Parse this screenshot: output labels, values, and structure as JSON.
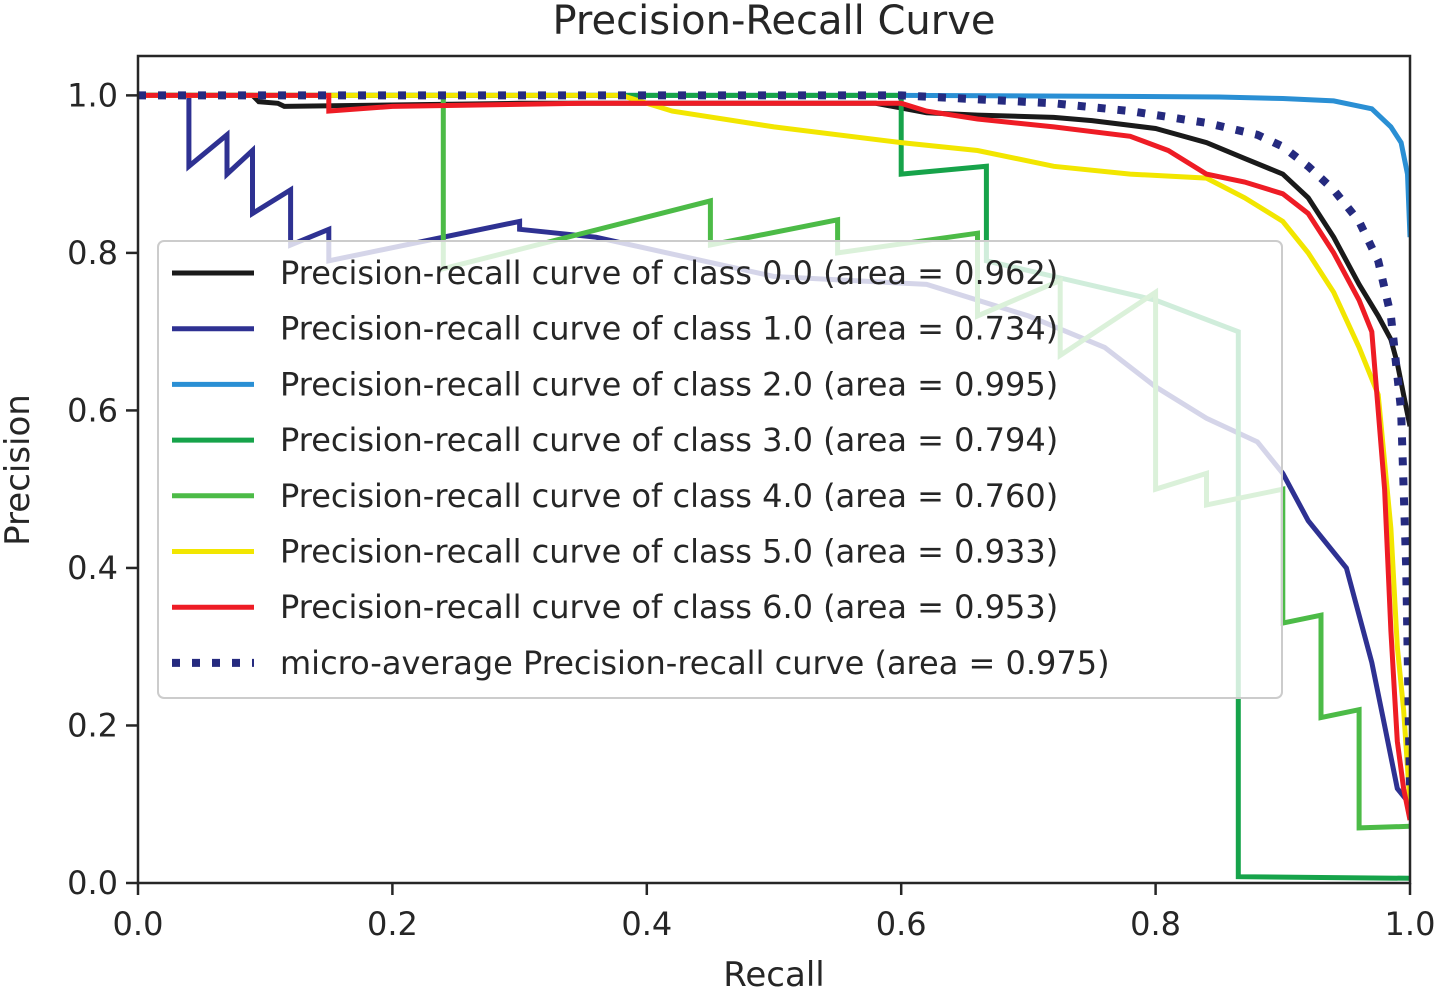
{
  "chart_data": {
    "type": "line",
    "title": "Precision-Recall Curve",
    "xlabel": "Recall",
    "ylabel": "Precision",
    "xlim": [
      0.0,
      1.0
    ],
    "ylim": [
      0.0,
      1.05
    ],
    "xticks": [
      "0.0",
      "0.2",
      "0.4",
      "0.6",
      "0.8",
      "1.0"
    ],
    "yticks": [
      "0.0",
      "0.2",
      "0.4",
      "0.6",
      "0.8",
      "1.0"
    ],
    "legend_position": "center",
    "series": [
      {
        "name": "Precision-recall curve of class 0.0 (area = 0.962)",
        "color": "#1a1a1a",
        "style": "solid",
        "points": [
          [
            0,
            1.0
          ],
          [
            0.09,
            1.0
          ],
          [
            0.095,
            0.992
          ],
          [
            0.11,
            0.99
          ],
          [
            0.115,
            0.986
          ],
          [
            0.3,
            0.99
          ],
          [
            0.58,
            0.99
          ],
          [
            0.62,
            0.978
          ],
          [
            0.66,
            0.975
          ],
          [
            0.72,
            0.972
          ],
          [
            0.75,
            0.968
          ],
          [
            0.8,
            0.958
          ],
          [
            0.84,
            0.94
          ],
          [
            0.87,
            0.92
          ],
          [
            0.9,
            0.9
          ],
          [
            0.92,
            0.87
          ],
          [
            0.94,
            0.82
          ],
          [
            0.96,
            0.76
          ],
          [
            0.975,
            0.72
          ],
          [
            0.985,
            0.69
          ],
          [
            0.99,
            0.66
          ],
          [
            0.995,
            0.62
          ],
          [
            1.0,
            0.58
          ]
        ]
      },
      {
        "name": "Precision-recall curve of class 1.0 (area = 0.734)",
        "color": "#2e3192",
        "style": "solid",
        "points": [
          [
            0,
            1.0
          ],
          [
            0.04,
            1.0
          ],
          [
            0.04,
            0.91
          ],
          [
            0.07,
            0.95
          ],
          [
            0.07,
            0.9
          ],
          [
            0.09,
            0.93
          ],
          [
            0.09,
            0.85
          ],
          [
            0.12,
            0.88
          ],
          [
            0.12,
            0.81
          ],
          [
            0.15,
            0.83
          ],
          [
            0.15,
            0.79
          ],
          [
            0.18,
            0.8
          ],
          [
            0.3,
            0.84
          ],
          [
            0.3,
            0.83
          ],
          [
            0.36,
            0.82
          ],
          [
            0.5,
            0.77
          ],
          [
            0.62,
            0.76
          ],
          [
            0.7,
            0.72
          ],
          [
            0.76,
            0.68
          ],
          [
            0.8,
            0.63
          ],
          [
            0.84,
            0.59
          ],
          [
            0.88,
            0.56
          ],
          [
            0.9,
            0.52
          ],
          [
            0.92,
            0.46
          ],
          [
            0.95,
            0.4
          ],
          [
            0.97,
            0.28
          ],
          [
            0.98,
            0.2
          ],
          [
            0.99,
            0.12
          ],
          [
            1.0,
            0.1
          ]
        ]
      },
      {
        "name": "Precision-recall curve of class 2.0 (area = 0.995)",
        "color": "#2a8fd4",
        "style": "solid",
        "points": [
          [
            0,
            1.0
          ],
          [
            0.6,
            1.0
          ],
          [
            0.75,
            0.999
          ],
          [
            0.85,
            0.998
          ],
          [
            0.9,
            0.996
          ],
          [
            0.94,
            0.993
          ],
          [
            0.97,
            0.983
          ],
          [
            0.985,
            0.96
          ],
          [
            0.993,
            0.94
          ],
          [
            0.998,
            0.9
          ],
          [
            1.0,
            0.82
          ]
        ]
      },
      {
        "name": "Precision-recall curve of class 3.0 (area = 0.794)",
        "color": "#16a34a",
        "style": "solid",
        "points": [
          [
            0,
            1.0
          ],
          [
            0.6,
            1.0
          ],
          [
            0.6,
            0.9
          ],
          [
            0.667,
            0.91
          ],
          [
            0.667,
            0.79
          ],
          [
            0.72,
            0.77
          ],
          [
            0.8,
            0.74
          ],
          [
            0.865,
            0.7
          ],
          [
            0.865,
            0.008
          ],
          [
            1.0,
            0.006
          ]
        ]
      },
      {
        "name": "Precision-recall curve of class 4.0 (area = 0.760)",
        "color": "#4cbb47",
        "style": "solid",
        "points": [
          [
            0,
            1.0
          ],
          [
            0.24,
            1.0
          ],
          [
            0.24,
            0.78
          ],
          [
            0.45,
            0.866
          ],
          [
            0.45,
            0.81
          ],
          [
            0.55,
            0.842
          ],
          [
            0.55,
            0.8
          ],
          [
            0.66,
            0.825
          ],
          [
            0.66,
            0.72
          ],
          [
            0.725,
            0.765
          ],
          [
            0.725,
            0.67
          ],
          [
            0.8,
            0.75
          ],
          [
            0.8,
            0.5
          ],
          [
            0.84,
            0.52
          ],
          [
            0.84,
            0.48
          ],
          [
            0.9,
            0.5
          ],
          [
            0.9,
            0.33
          ],
          [
            0.93,
            0.34
          ],
          [
            0.93,
            0.21
          ],
          [
            0.96,
            0.22
          ],
          [
            0.96,
            0.07
          ],
          [
            1.0,
            0.072
          ]
        ]
      },
      {
        "name": "Precision-recall curve of class 5.0 (area = 0.933)",
        "color": "#f2e600",
        "style": "solid",
        "points": [
          [
            0,
            1.0
          ],
          [
            0.38,
            1.0
          ],
          [
            0.42,
            0.98
          ],
          [
            0.5,
            0.96
          ],
          [
            0.6,
            0.94
          ],
          [
            0.66,
            0.93
          ],
          [
            0.72,
            0.91
          ],
          [
            0.78,
            0.9
          ],
          [
            0.84,
            0.895
          ],
          [
            0.87,
            0.87
          ],
          [
            0.9,
            0.84
          ],
          [
            0.92,
            0.8
          ],
          [
            0.94,
            0.75
          ],
          [
            0.96,
            0.68
          ],
          [
            0.975,
            0.62
          ],
          [
            0.985,
            0.45
          ],
          [
            0.99,
            0.3
          ],
          [
            0.995,
            0.22
          ],
          [
            1.0,
            0.1
          ]
        ]
      },
      {
        "name": "Precision-recall curve of class 6.0 (area = 0.953)",
        "color": "#ee1c25",
        "style": "solid",
        "points": [
          [
            0,
            1.0
          ],
          [
            0.15,
            1.0
          ],
          [
            0.15,
            0.98
          ],
          [
            0.2,
            0.986
          ],
          [
            0.35,
            0.99
          ],
          [
            0.6,
            0.99
          ],
          [
            0.62,
            0.98
          ],
          [
            0.66,
            0.97
          ],
          [
            0.72,
            0.96
          ],
          [
            0.78,
            0.948
          ],
          [
            0.81,
            0.93
          ],
          [
            0.84,
            0.9
          ],
          [
            0.87,
            0.89
          ],
          [
            0.9,
            0.875
          ],
          [
            0.92,
            0.85
          ],
          [
            0.94,
            0.8
          ],
          [
            0.96,
            0.74
          ],
          [
            0.97,
            0.7
          ],
          [
            0.98,
            0.5
          ],
          [
            0.985,
            0.32
          ],
          [
            0.99,
            0.18
          ],
          [
            0.995,
            0.12
          ],
          [
            1.0,
            0.08
          ]
        ]
      },
      {
        "name": "micro-average Precision-recall curve (area = 0.975)",
        "color": "#252a7f",
        "style": "dotted",
        "points": [
          [
            0,
            1.0
          ],
          [
            0.6,
            1.0
          ],
          [
            0.66,
            0.995
          ],
          [
            0.72,
            0.99
          ],
          [
            0.78,
            0.98
          ],
          [
            0.84,
            0.965
          ],
          [
            0.88,
            0.95
          ],
          [
            0.9,
            0.935
          ],
          [
            0.92,
            0.91
          ],
          [
            0.94,
            0.88
          ],
          [
            0.96,
            0.84
          ],
          [
            0.975,
            0.79
          ],
          [
            0.985,
            0.72
          ],
          [
            0.993,
            0.6
          ],
          [
            0.997,
            0.4
          ],
          [
            1.0,
            0.12
          ]
        ]
      }
    ]
  }
}
